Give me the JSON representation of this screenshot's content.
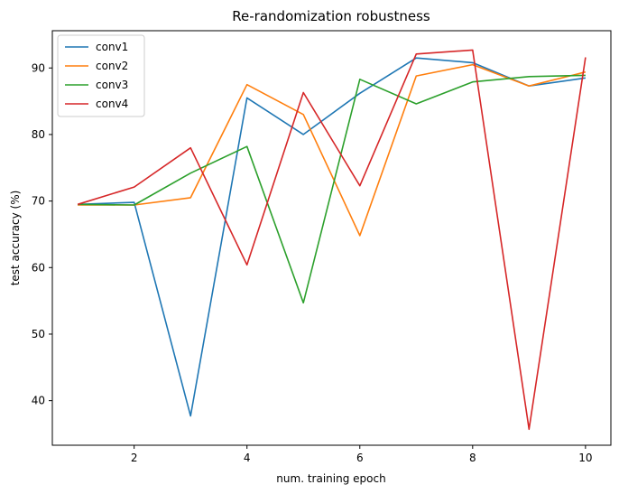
{
  "chart_data": {
    "type": "line",
    "title": "Re-randomization robustness",
    "xlabel": "num. training epoch",
    "ylabel": "test accuracy (%)",
    "x": [
      1,
      2,
      3,
      4,
      5,
      6,
      7,
      8,
      9,
      10
    ],
    "xlim": [
      0.55,
      10.45
    ],
    "ylim": [
      33.3,
      95.6
    ],
    "xticks": [
      2,
      4,
      6,
      8,
      10
    ],
    "yticks": [
      40,
      50,
      60,
      70,
      80,
      90
    ],
    "grid": false,
    "legend_position": "top-left",
    "series": [
      {
        "name": "conv1",
        "color": "#1f77b4",
        "values": [
          69.5,
          69.8,
          37.7,
          85.5,
          80.0,
          86.2,
          91.5,
          90.8,
          87.3,
          88.5
        ]
      },
      {
        "name": "conv2",
        "color": "#ff7f0e",
        "values": [
          69.4,
          69.4,
          70.5,
          87.5,
          83.0,
          64.8,
          88.8,
          90.5,
          87.3,
          89.4
        ]
      },
      {
        "name": "conv3",
        "color": "#2ca02c",
        "values": [
          69.5,
          69.4,
          74.2,
          78.2,
          54.7,
          88.3,
          84.6,
          87.9,
          88.7,
          88.9
        ]
      },
      {
        "name": "conv4",
        "color": "#d62728",
        "values": [
          69.5,
          72.1,
          78.0,
          60.4,
          86.3,
          72.3,
          92.1,
          92.7,
          35.7,
          91.6
        ]
      }
    ]
  }
}
